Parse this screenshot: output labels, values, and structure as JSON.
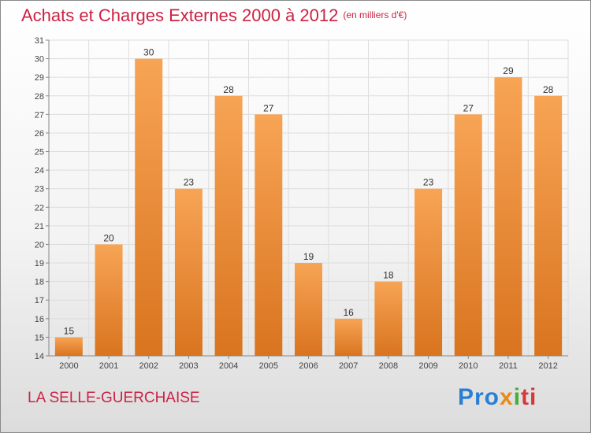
{
  "header": {
    "title": "Achats et Charges Externes 2000 à 2012",
    "unit": "(en milliers d'€)"
  },
  "footer": {
    "commune": "LA SELLE-GUERCHAISE",
    "logo_text": [
      "Pro",
      "x",
      "i",
      "ti"
    ]
  },
  "colors": {
    "bar_light": "#f7a455",
    "bar_dark": "#d9741f",
    "title": "#cc2244",
    "grid": "#dddddd"
  },
  "chart_data": {
    "type": "bar",
    "title": "Achats et Charges Externes 2000 à 2012",
    "categories": [
      "2000",
      "2001",
      "2002",
      "2003",
      "2004",
      "2005",
      "2006",
      "2007",
      "2008",
      "2009",
      "2010",
      "2011",
      "2012"
    ],
    "values": [
      15,
      20,
      30,
      23,
      28,
      27,
      19,
      16,
      18,
      23,
      27,
      29,
      28
    ],
    "ylim": [
      14,
      31
    ],
    "yticks": [
      14,
      15,
      16,
      17,
      18,
      19,
      20,
      21,
      22,
      23,
      24,
      25,
      26,
      27,
      28,
      29,
      30,
      31
    ],
    "grid": true,
    "data_labels": true
  }
}
